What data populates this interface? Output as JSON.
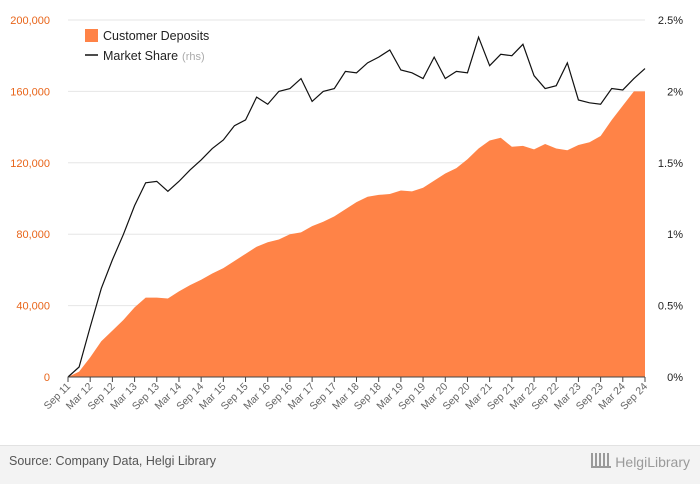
{
  "chart_data": {
    "type": "area",
    "categories": [
      "Sep 11",
      "Dec 11",
      "Mar 12",
      "Jun 12",
      "Sep 12",
      "Dec 12",
      "Mar 13",
      "Jun 13",
      "Sep 13",
      "Dec 13",
      "Mar 14",
      "Jun 14",
      "Sep 14",
      "Dec 14",
      "Mar 15",
      "Jun 15",
      "Sep 15",
      "Dec 15",
      "Mar 16",
      "Jun 16",
      "Sep 16",
      "Dec 16",
      "Mar 17",
      "Jun 17",
      "Sep 17",
      "Dec 17",
      "Mar 18",
      "Jun 18",
      "Sep 18",
      "Dec 18",
      "Mar 19",
      "Jun 19",
      "Sep 19",
      "Dec 19",
      "Mar 20",
      "Jun 20",
      "Sep 20",
      "Dec 20",
      "Mar 21",
      "Jun 21",
      "Sep 21",
      "Dec 21",
      "Mar 22",
      "Jun 22",
      "Sep 22",
      "Dec 22",
      "Mar 23",
      "Jun 23",
      "Sep 23",
      "Dec 23",
      "Mar 24",
      "Jun 24",
      "Sep 24"
    ],
    "x_tick_labels": [
      "Sep 11",
      "Mar 12",
      "Sep 12",
      "Mar 13",
      "Sep 13",
      "Mar 14",
      "Sep 14",
      "Mar 15",
      "Sep 15",
      "Mar 16",
      "Sep 16",
      "Mar 17",
      "Sep 17",
      "Mar 18",
      "Sep 18",
      "Mar 19",
      "Sep 19",
      "Mar 20",
      "Sep 20",
      "Mar 21",
      "Sep 21",
      "Mar 22",
      "Sep 22",
      "Mar 23",
      "Sep 23",
      "Mar 24",
      "Sep 24"
    ],
    "series": [
      {
        "name": "Customer Deposits",
        "axis": "left",
        "kind": "area",
        "color": "#ff8347",
        "values": [
          0,
          3000,
          11000,
          20000,
          26000,
          32000,
          39000,
          44500,
          44500,
          44000,
          48000,
          51500,
          54500,
          58000,
          61000,
          65000,
          69000,
          73000,
          75500,
          77000,
          80000,
          81000,
          84500,
          87000,
          90000,
          94000,
          98000,
          101000,
          102000,
          102500,
          104500,
          104000,
          106000,
          110000,
          114000,
          117000,
          122000,
          128000,
          132500,
          134000,
          129000,
          129500,
          127500,
          130500,
          128000,
          127000,
          130000,
          131500,
          135000,
          144000,
          152000,
          160000,
          160000
        ]
      },
      {
        "name": "Market Share",
        "name_suffix": "(rhs)",
        "axis": "right",
        "kind": "line",
        "color": "#111111",
        "values": [
          0.0,
          0.07,
          0.35,
          0.62,
          0.82,
          1.0,
          1.2,
          1.36,
          1.37,
          1.3,
          1.37,
          1.45,
          1.52,
          1.6,
          1.66,
          1.76,
          1.8,
          1.96,
          1.91,
          2.0,
          2.02,
          2.09,
          1.93,
          2.0,
          2.02,
          2.14,
          2.13,
          2.2,
          2.24,
          2.29,
          2.15,
          2.13,
          2.09,
          2.24,
          2.09,
          2.14,
          2.13,
          2.38,
          2.18,
          2.26,
          2.25,
          2.33,
          2.11,
          2.02,
          2.04,
          2.2,
          1.94,
          1.92,
          1.91,
          2.02,
          2.01,
          2.09,
          2.16
        ]
      }
    ],
    "y_left": {
      "min": 0,
      "max": 200000,
      "ticks": [
        0,
        40000,
        80000,
        120000,
        160000,
        200000
      ],
      "tick_labels": [
        "0",
        "40,000",
        "80,000",
        "120,000",
        "160,000",
        "200,000"
      ]
    },
    "y_right": {
      "min": 0,
      "max": 2.5,
      "ticks": [
        0,
        0.5,
        1,
        1.5,
        2,
        2.5
      ],
      "tick_labels": [
        "0%",
        "0.5%",
        "1%",
        "1.5%",
        "2%",
        "2.5%"
      ]
    },
    "grid": "horizontal",
    "legend_position": "top-left"
  },
  "footer": {
    "source": "Source: Company Data, Helgi Library",
    "logo": "HelgiLibrary"
  }
}
